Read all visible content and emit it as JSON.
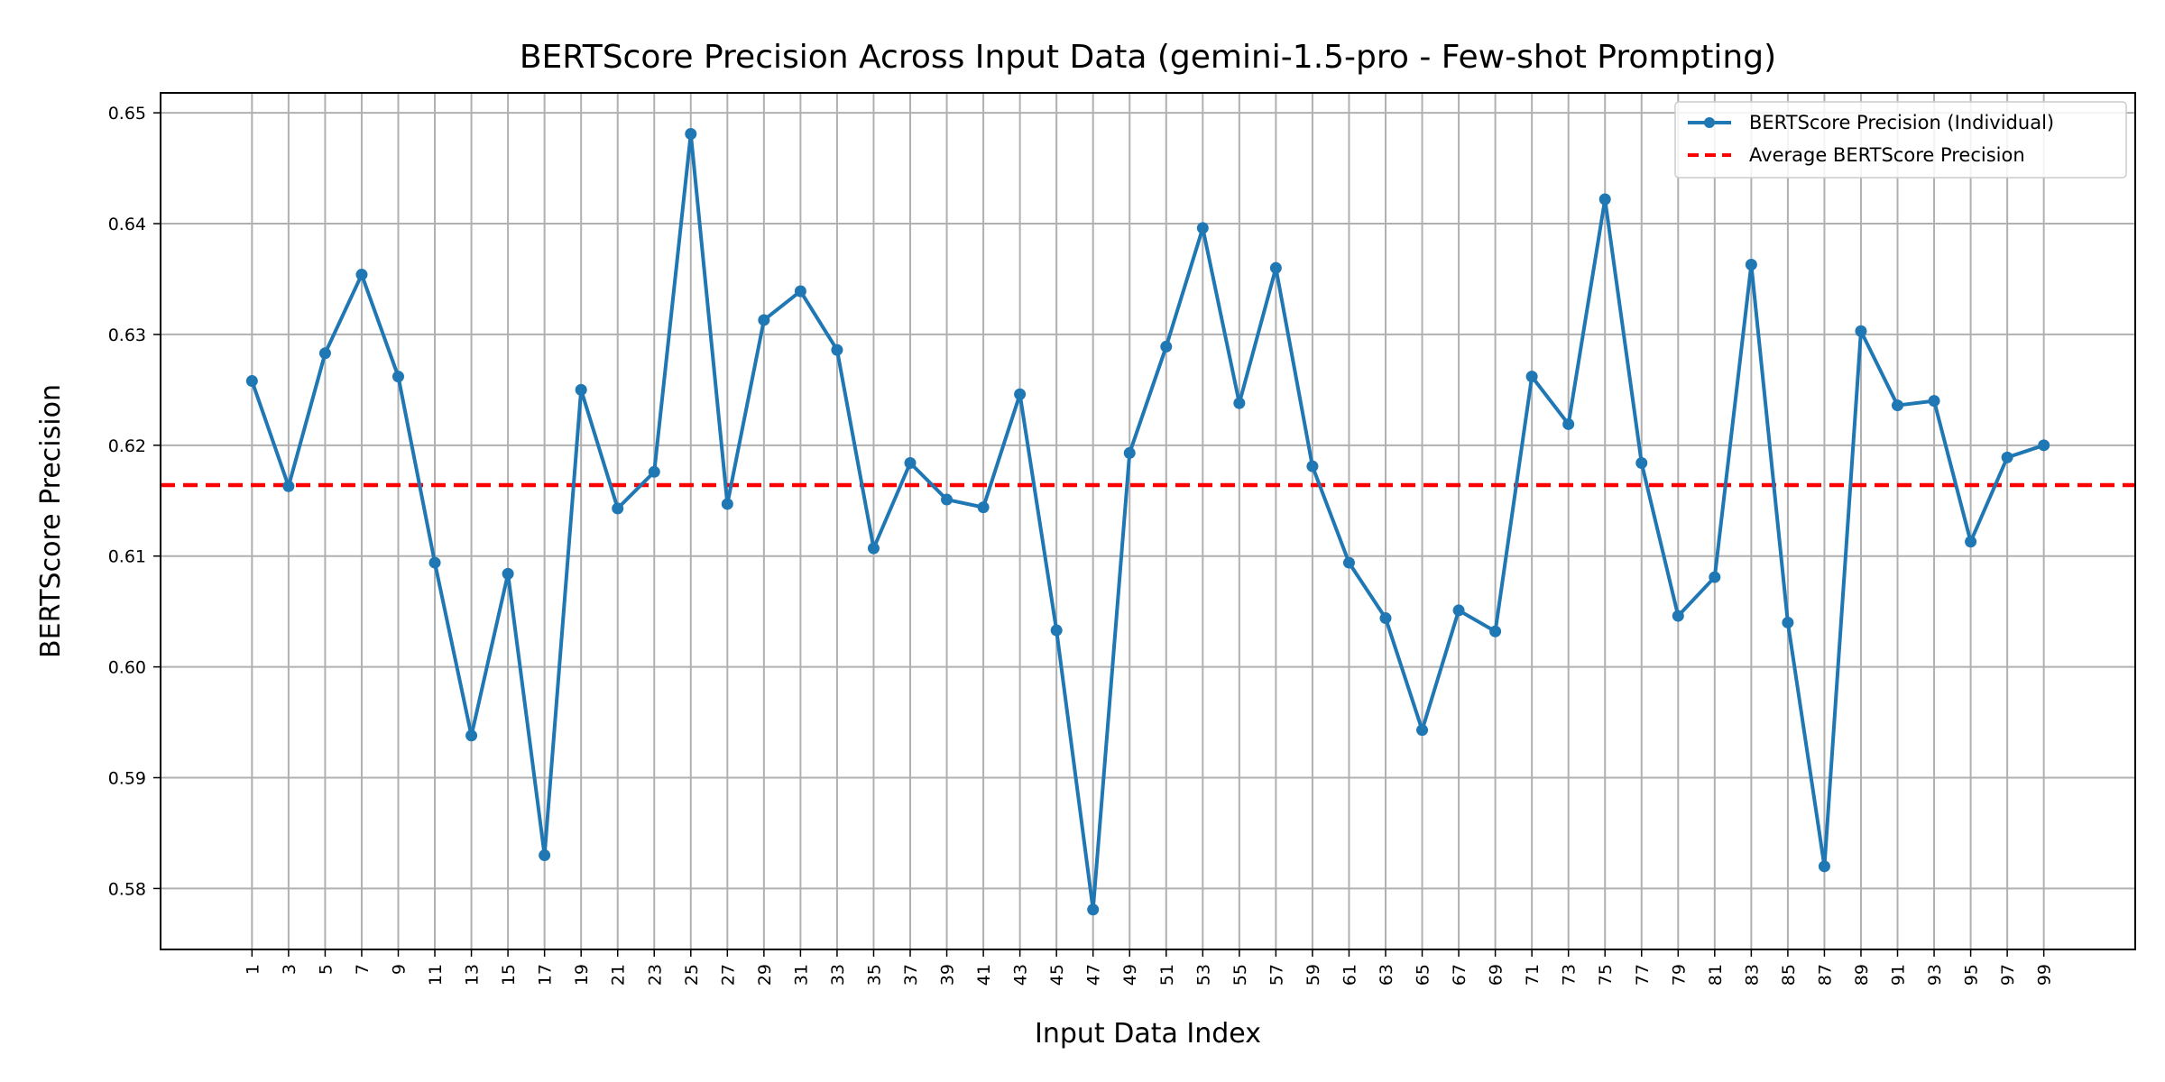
{
  "chart_data": {
    "type": "line",
    "title": "BERTScore Precision Across Input Data (gemini-1.5-pro - Few-shot Prompting)",
    "xlabel": "Input Data Index",
    "ylabel": "BERTScore Precision",
    "xlim": [
      -4,
      104
    ],
    "ylim": [
      0.5745,
      0.6518
    ],
    "x_ticks": [
      1,
      3,
      5,
      7,
      9,
      11,
      13,
      15,
      17,
      19,
      21,
      23,
      25,
      27,
      29,
      31,
      33,
      35,
      37,
      39,
      41,
      43,
      45,
      47,
      49,
      51,
      53,
      55,
      57,
      59,
      61,
      63,
      65,
      67,
      69,
      71,
      73,
      75,
      77,
      79,
      81,
      83,
      85,
      87,
      89,
      91,
      93,
      95,
      97,
      99
    ],
    "y_ticks": [
      0.58,
      0.59,
      0.6,
      0.61,
      0.62,
      0.63,
      0.64,
      0.65
    ],
    "y_tick_labels": [
      "0.58",
      "0.59",
      "0.60",
      "0.61",
      "0.62",
      "0.63",
      "0.64",
      "0.65"
    ],
    "grid": true,
    "legend_position": "top-right",
    "x": [
      1,
      3,
      5,
      7,
      9,
      11,
      13,
      15,
      17,
      19,
      21,
      23,
      25,
      27,
      29,
      31,
      33,
      35,
      37,
      39,
      41,
      43,
      45,
      47,
      49,
      51,
      53,
      55,
      57,
      59,
      61,
      63,
      65,
      67,
      69,
      71,
      73,
      75,
      77,
      79,
      81,
      83,
      85,
      87,
      89,
      91,
      93,
      95,
      97,
      99
    ],
    "series": [
      {
        "name": "BERTScore Precision (Individual)",
        "color": "#1f77b4",
        "style": "line-with-markers",
        "values": [
          0.6258,
          0.6163,
          0.6283,
          0.6354,
          0.6262,
          0.6094,
          0.5938,
          0.6084,
          0.583,
          0.625,
          0.6143,
          0.6176,
          0.6481,
          0.6147,
          0.6313,
          0.6339,
          0.6286,
          0.6107,
          0.6184,
          0.6151,
          0.6144,
          0.6246,
          0.6033,
          0.5781,
          0.6193,
          0.6289,
          0.6396,
          0.6238,
          0.636,
          0.6181,
          0.6094,
          0.6044,
          0.5943,
          0.6051,
          0.6032,
          0.6262,
          0.6219,
          0.6422,
          0.6184,
          0.6046,
          0.6081,
          0.6363,
          0.604,
          0.582,
          0.6303,
          0.6236,
          0.624,
          0.6113,
          0.6189,
          0.62
        ]
      },
      {
        "name": "Average BERTScore Precision",
        "color": "#ff0000",
        "style": "dashed-horizontal",
        "value": 0.6164
      }
    ]
  }
}
